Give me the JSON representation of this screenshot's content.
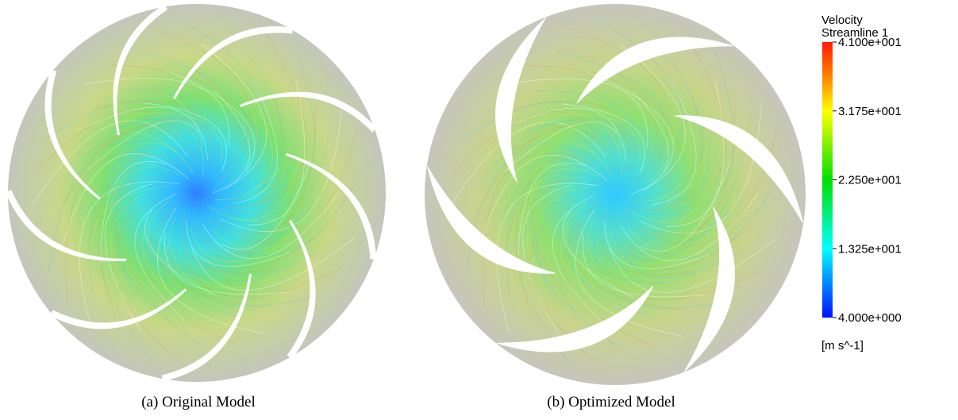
{
  "panels": [
    {
      "caption": "(a) Original Model"
    },
    {
      "caption": "(b) Optimized Model"
    }
  ],
  "legend": {
    "title": "Velocity",
    "subtitle": "Streamline 1",
    "ticks": [
      {
        "value": 41,
        "label": "4.100e+001"
      },
      {
        "value": 31.75,
        "label": "3.175e+001"
      },
      {
        "value": 22.5,
        "label": "2.250e+001"
      },
      {
        "value": 13.25,
        "label": "1.325e+001"
      },
      {
        "value": 4,
        "label": "4.000e+000"
      }
    ],
    "unit": "[m s^-1]"
  }
}
